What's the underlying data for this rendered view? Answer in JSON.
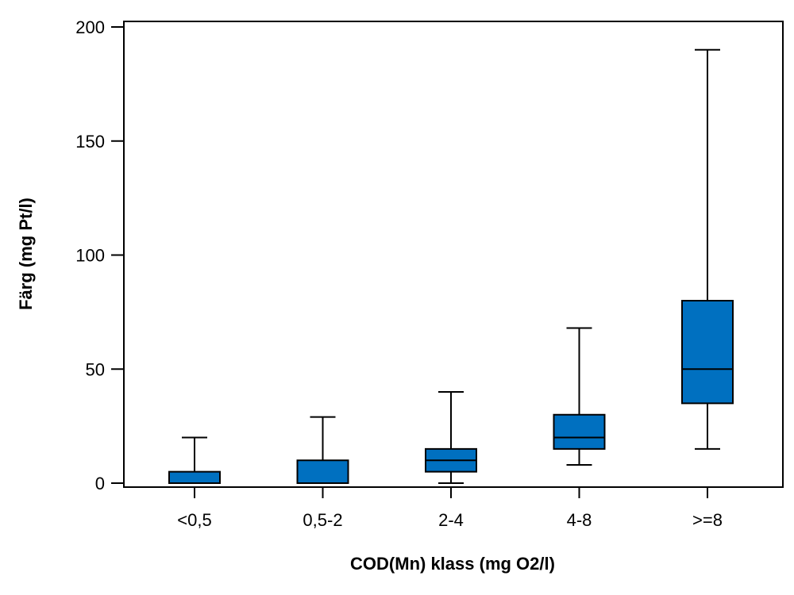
{
  "chart_data": {
    "type": "boxplot",
    "title": "",
    "xlabel": "COD(Mn) klass (mg O2/l)",
    "ylabel": "Färg (mg Pt/l)",
    "ylim": [
      0,
      200
    ],
    "yticks": [
      0,
      50,
      100,
      150,
      200
    ],
    "grid": false,
    "box_color": "#0070c0",
    "categories": [
      "<0,5",
      "0,5-2",
      "2-4",
      "4-8",
      ">=8"
    ],
    "boxes": [
      {
        "category": "<0,5",
        "whisker_low": 0,
        "q1": 0,
        "median": 0,
        "q3": 5,
        "whisker_high": 20
      },
      {
        "category": "0,5-2",
        "whisker_low": 0,
        "q1": 0,
        "median": 0,
        "q3": 10,
        "whisker_high": 29
      },
      {
        "category": "2-4",
        "whisker_low": 0,
        "q1": 5,
        "median": 10,
        "q3": 15,
        "whisker_high": 40
      },
      {
        "category": "4-8",
        "whisker_low": 8,
        "q1": 15,
        "median": 20,
        "q3": 30,
        "whisker_high": 68
      },
      {
        "category": ">=8",
        "whisker_low": 15,
        "q1": 35,
        "median": 50,
        "q3": 80,
        "whisker_high": 190
      }
    ]
  }
}
